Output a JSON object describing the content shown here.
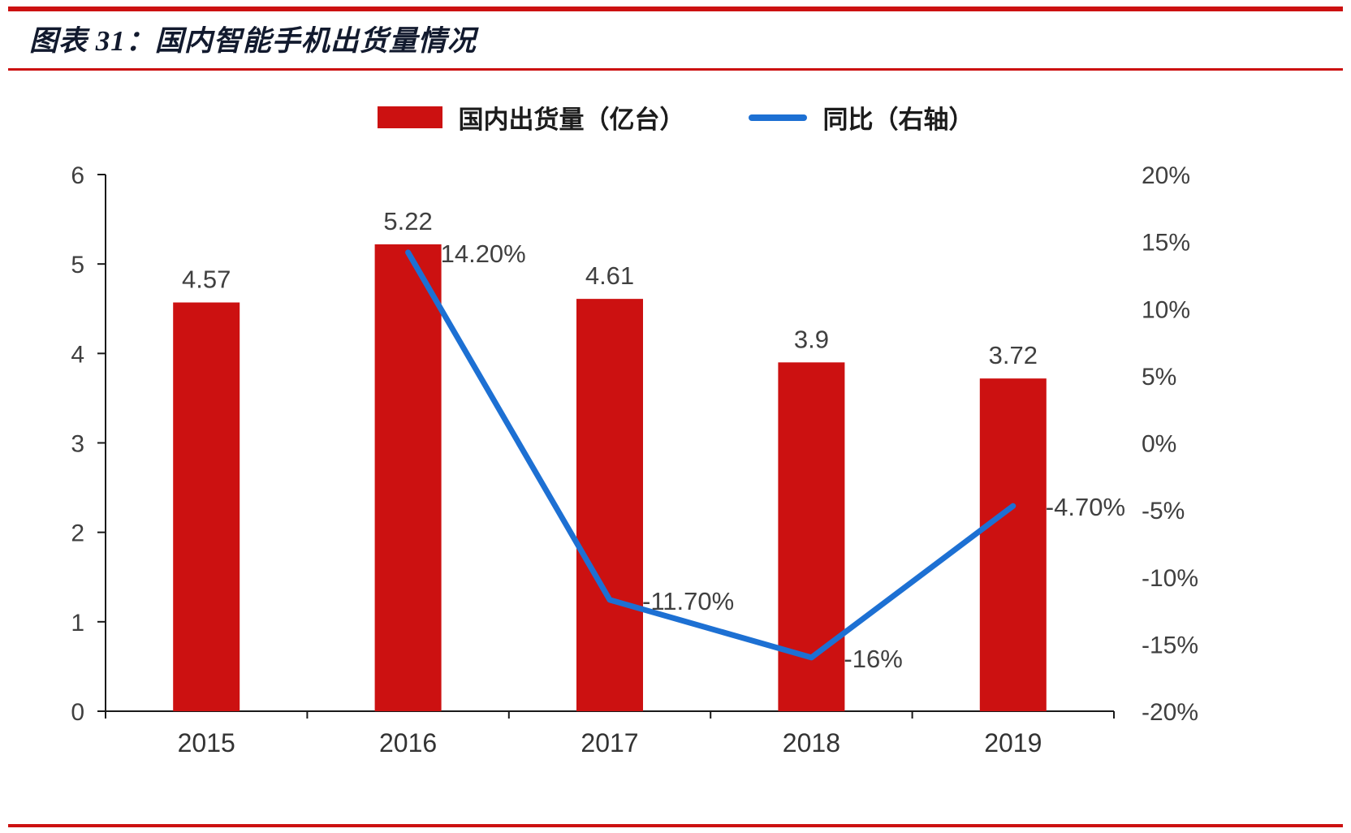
{
  "header": {
    "title": "图表 31：国内智能手机出货量情况"
  },
  "legend": {
    "bar_label": "国内出货量（亿台）",
    "line_label": "同比（右轴）"
  },
  "colors": {
    "accent_red": "#CC1111",
    "line_blue": "#1D70D3"
  },
  "chart_data": {
    "type": "combo (bar + line)",
    "title": "图表 31：国内智能手机出货量情况",
    "categories": [
      "2015",
      "2016",
      "2017",
      "2018",
      "2019"
    ],
    "series": [
      {
        "name": "国内出货量（亿台）",
        "type": "bar",
        "axis": "left",
        "color": "#CC1111",
        "values": [
          4.57,
          5.22,
          4.61,
          3.9,
          3.72
        ],
        "labels": [
          "4.57",
          "5.22",
          "4.61",
          "3.9",
          "3.72"
        ]
      },
      {
        "name": "同比（右轴）",
        "type": "line",
        "axis": "right",
        "color": "#1D70D3",
        "values": [
          null,
          14.2,
          -11.7,
          -16,
          -4.7
        ],
        "labels": [
          "",
          "14.20%",
          "-11.70%",
          "-16%",
          "-4.70%"
        ]
      }
    ],
    "left_axis": {
      "min": 0,
      "max": 6,
      "tick_labels": [
        "6",
        "5",
        "4",
        "3",
        "2",
        "1",
        "0"
      ]
    },
    "right_axis": {
      "min": -20,
      "max": 20,
      "tick_labels": [
        "20%",
        "15%",
        "10%",
        "5%",
        "0%",
        "-5%",
        "-10%",
        "-15%",
        "-20%"
      ]
    },
    "grid": false,
    "legend_position": "top-center"
  }
}
